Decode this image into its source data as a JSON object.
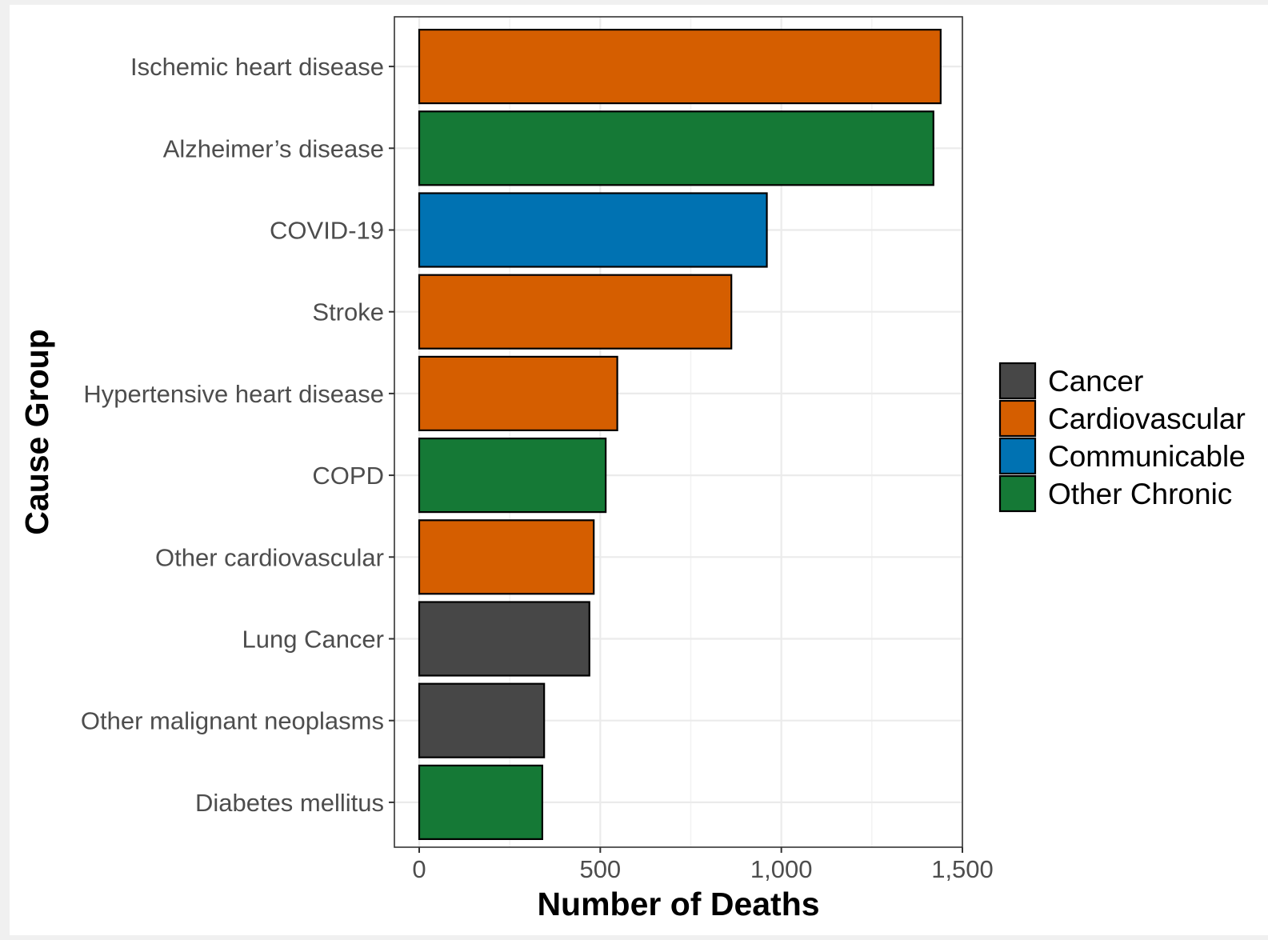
{
  "chart_data": {
    "type": "bar",
    "orientation": "horizontal",
    "title": "",
    "xlabel": "Number of Deaths",
    "ylabel": "Cause Group",
    "xlim": [
      0,
      1500
    ],
    "x_ticks": [
      0,
      500,
      1000,
      1500
    ],
    "x_tick_labels": [
      "0",
      "500",
      "1,000",
      "1,500"
    ],
    "grid": true,
    "legend_position": "right",
    "categories": [
      "Ischemic heart disease",
      "Alzheimer’s disease",
      "COVID-19",
      "Stroke",
      "Hypertensive heart disease",
      "COPD",
      "Other cardiovascular",
      "Lung Cancer",
      "Other malignant neoplasms",
      "Diabetes mellitus"
    ],
    "values": [
      1440,
      1420,
      960,
      862,
      547,
      515,
      482,
      470,
      345,
      340
    ],
    "groups": [
      "Cardiovascular",
      "Other Chronic",
      "Communicable",
      "Cardiovascular",
      "Cardiovascular",
      "Other Chronic",
      "Cardiovascular",
      "Cancer",
      "Cancer",
      "Other Chronic"
    ],
    "legend": [
      {
        "name": "Cancer",
        "color": "#474747"
      },
      {
        "name": "Cardiovascular",
        "color": "#d55e00"
      },
      {
        "name": "Communicable",
        "color": "#0072b2"
      },
      {
        "name": "Other Chronic",
        "color": "#157936"
      }
    ]
  }
}
